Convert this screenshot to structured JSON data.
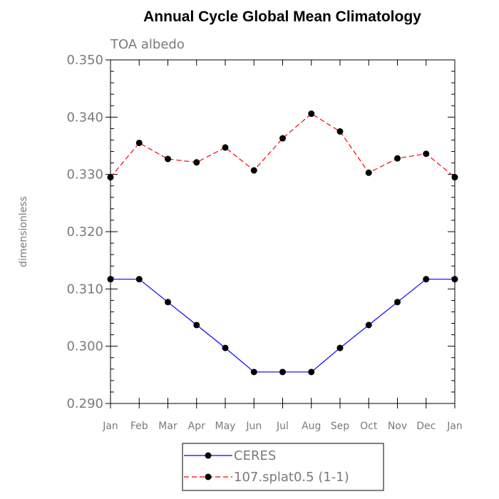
{
  "chart_data": {
    "type": "line",
    "title": "Annual Cycle Global Mean Climatology",
    "subtitle": "TOA albedo",
    "xlabel": "",
    "ylabel": "dimensionless",
    "categories": [
      "Jan",
      "Feb",
      "Mar",
      "Apr",
      "May",
      "Jun",
      "Jul",
      "Aug",
      "Sep",
      "Oct",
      "Nov",
      "Dec",
      "Jan"
    ],
    "ylim": [
      0.29,
      0.35
    ],
    "yticks": [
      "0.290",
      "0.300",
      "0.310",
      "0.320",
      "0.330",
      "0.340",
      "0.350"
    ],
    "grid": false,
    "legend_position": "bottom",
    "series": [
      {
        "name": "CERES",
        "color": "#0000ff",
        "style": "solid",
        "values": [
          0.3117,
          0.3117,
          0.3077,
          0.3037,
          0.2997,
          0.2955,
          0.2955,
          0.2955,
          0.2997,
          0.3037,
          0.3077,
          0.3117,
          0.3117
        ]
      },
      {
        "name": "107.splat0.5 (1-1)",
        "color": "#ff0000",
        "style": "dashed",
        "values": [
          0.3295,
          0.3355,
          0.3327,
          0.3321,
          0.3347,
          0.3307,
          0.3363,
          0.3406,
          0.3375,
          0.3303,
          0.3328,
          0.3336,
          0.3295
        ]
      }
    ]
  }
}
